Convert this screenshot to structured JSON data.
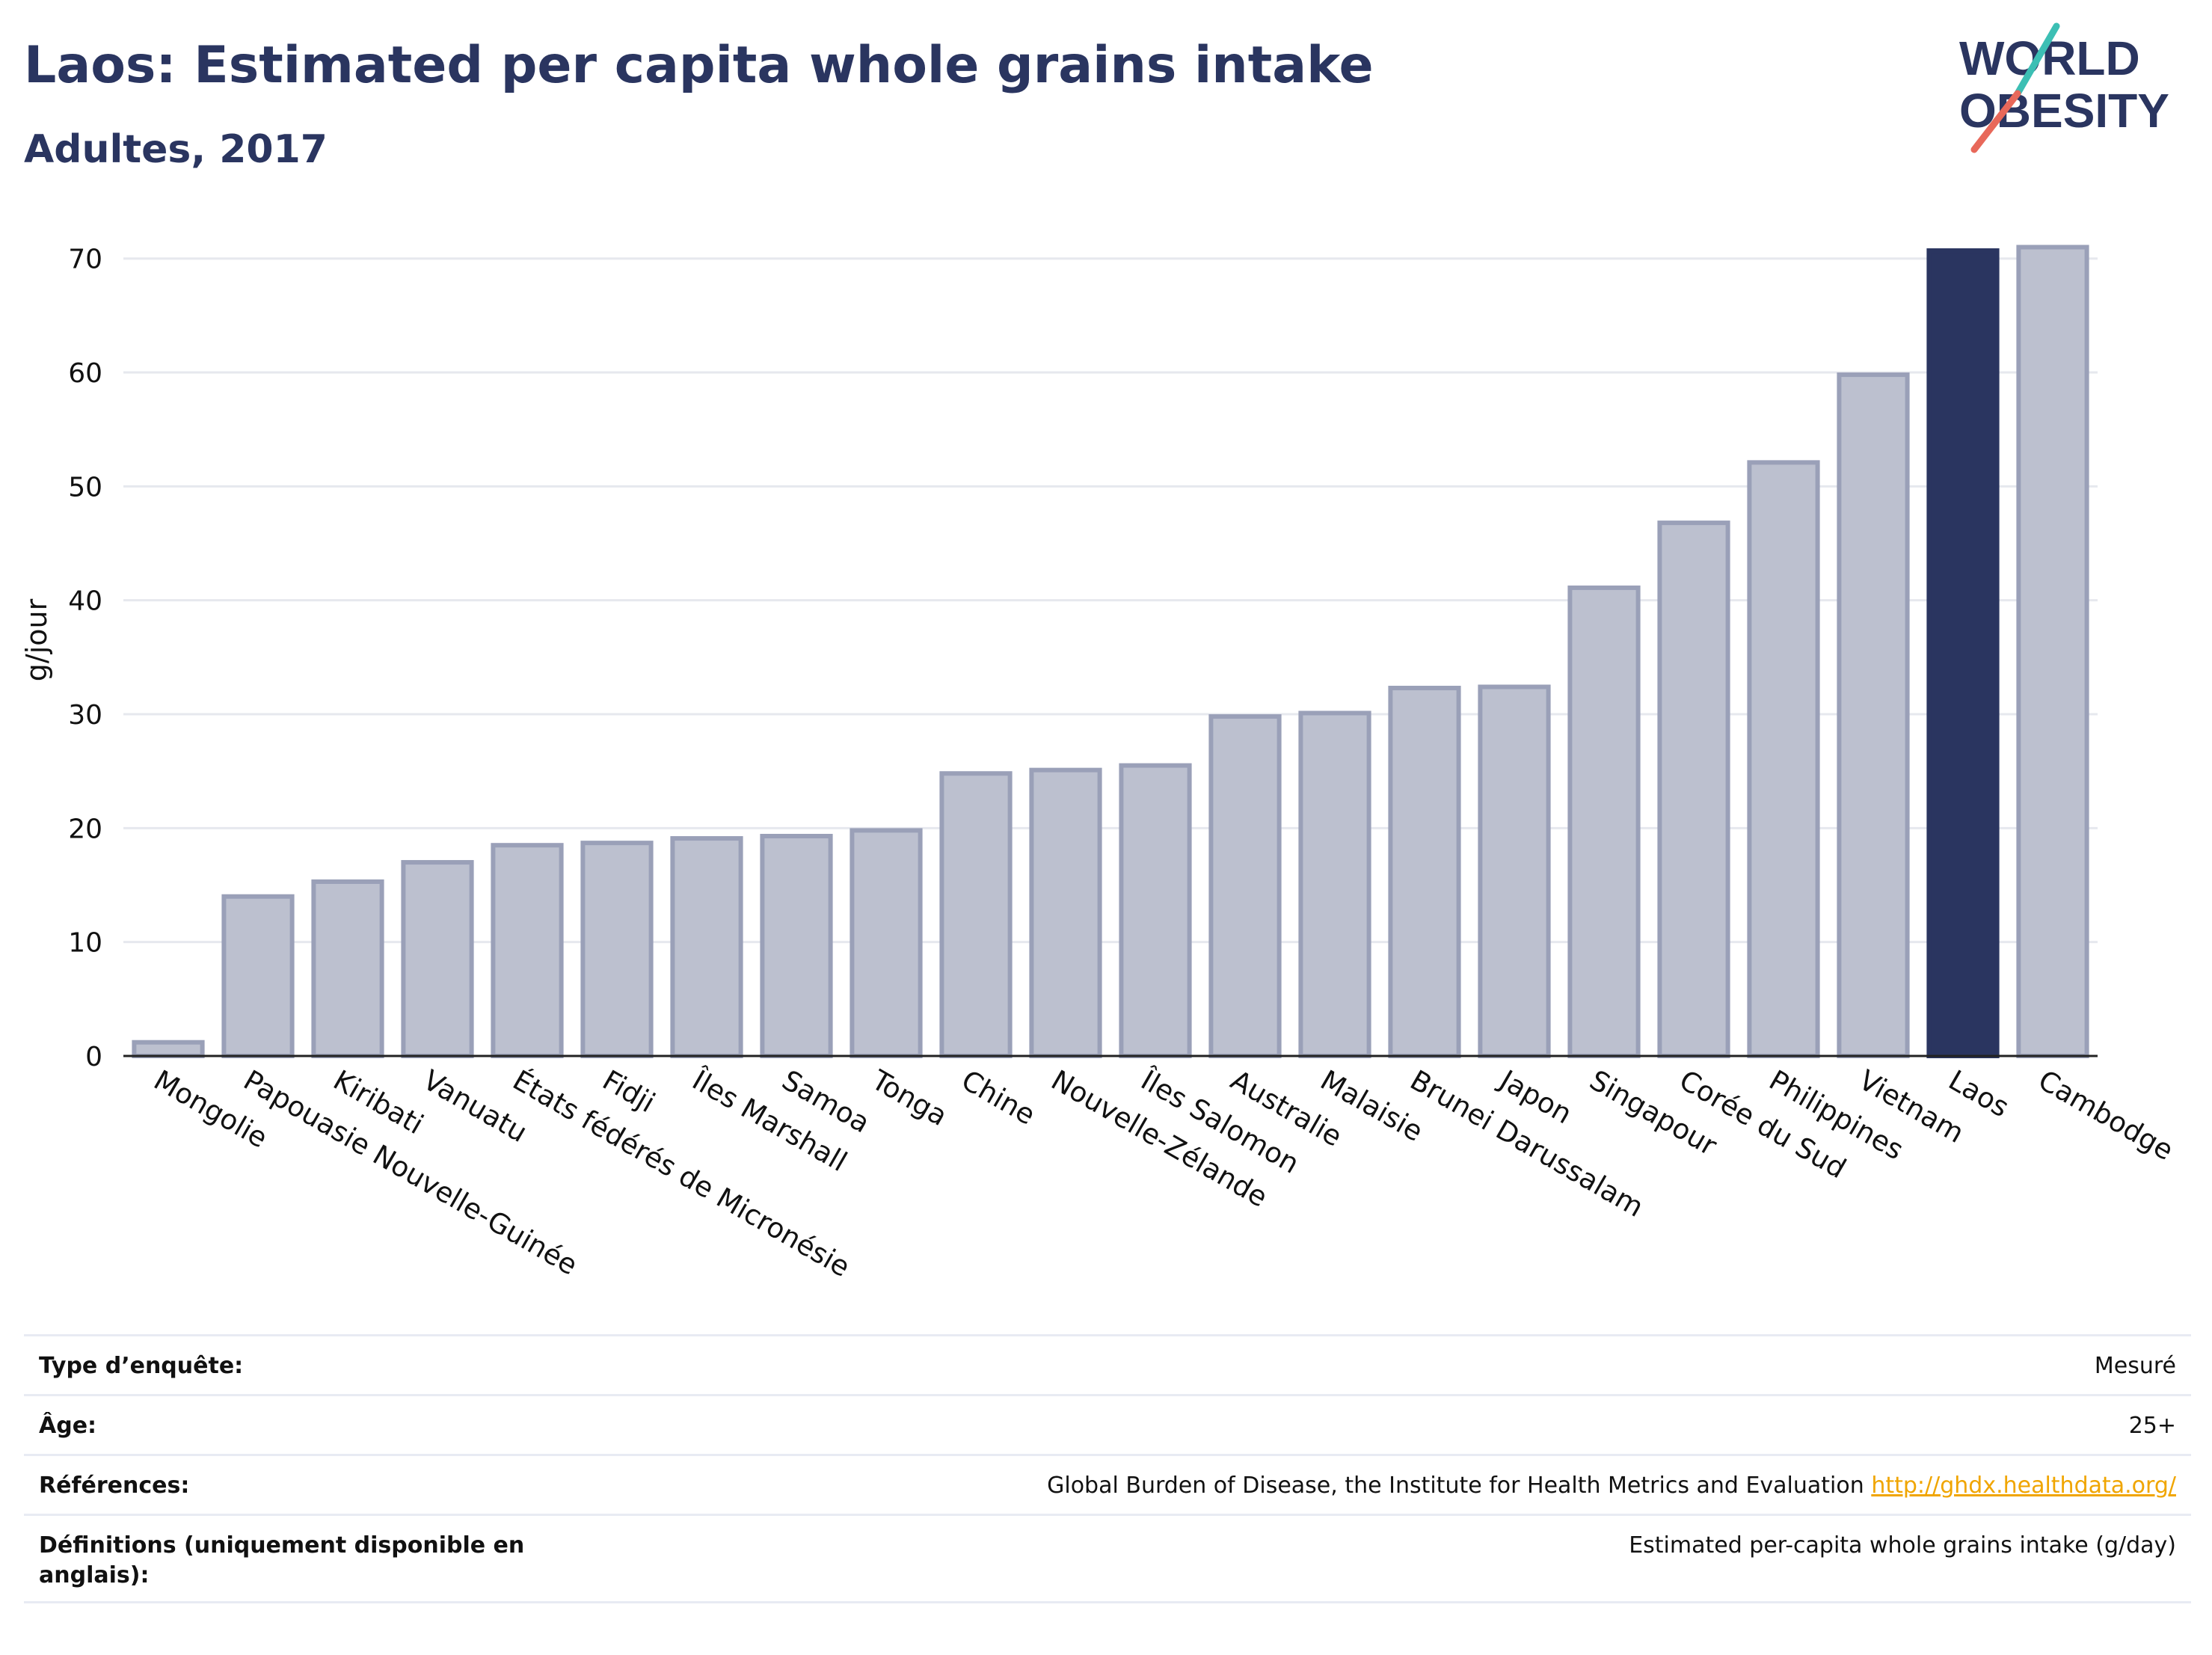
{
  "header": {
    "title": "Laos: Estimated per capita whole grains intake",
    "subtitle": "Adultes, 2017"
  },
  "logo": {
    "line1": "WORLD",
    "line2": "OBESITY",
    "accent_colors": [
      "#3cbfb4",
      "#e8685a"
    ]
  },
  "colors": {
    "bar_default": "#bcc0cf",
    "bar_default_border": "#9aa0b8",
    "bar_highlight": "#2a3560",
    "text": "#2a3560",
    "link": "#f0a500"
  },
  "chart_data": {
    "type": "bar",
    "ylabel": "g/jour",
    "ylim": [
      0,
      73
    ],
    "yticks": [
      0,
      10,
      20,
      30,
      40,
      50,
      60,
      70
    ],
    "grid": true,
    "highlight": "Laos",
    "categories": [
      "Mongolie",
      "Papouasie Nouvelle-Guinée",
      "Kiribati",
      "Vanuatu",
      "États fédérés de Micronésie",
      "Fidji",
      "Îles Marshall",
      "Samoa",
      "Tonga",
      "Chine",
      "Nouvelle-Zélande",
      "Îles Salomon",
      "Australie",
      "Malaisie",
      "Brunei Darussalam",
      "Japon",
      "Singapour",
      "Corée du Sud",
      "Philippines",
      "Vietnam",
      "Laos",
      "Cambodge"
    ],
    "values": [
      1.2,
      14.0,
      15.3,
      17.0,
      18.5,
      18.7,
      19.1,
      19.3,
      19.8,
      24.8,
      25.1,
      25.5,
      29.8,
      30.1,
      32.3,
      32.4,
      41.1,
      46.8,
      52.1,
      59.8,
      70.7,
      71.0
    ]
  },
  "info": {
    "rows": [
      {
        "label": "Type d’enquête:",
        "value": "Mesuré"
      },
      {
        "label": "Âge:",
        "value": "25+"
      },
      {
        "label": "Références:",
        "value": "Global Burden of Disease, the Institute for Health Metrics and Evaluation",
        "link": "http://ghdx.healthdata.org/"
      },
      {
        "label": "Définitions (uniquement disponible en anglais):",
        "value": "Estimated per-capita whole grains intake (g/day)"
      }
    ]
  }
}
